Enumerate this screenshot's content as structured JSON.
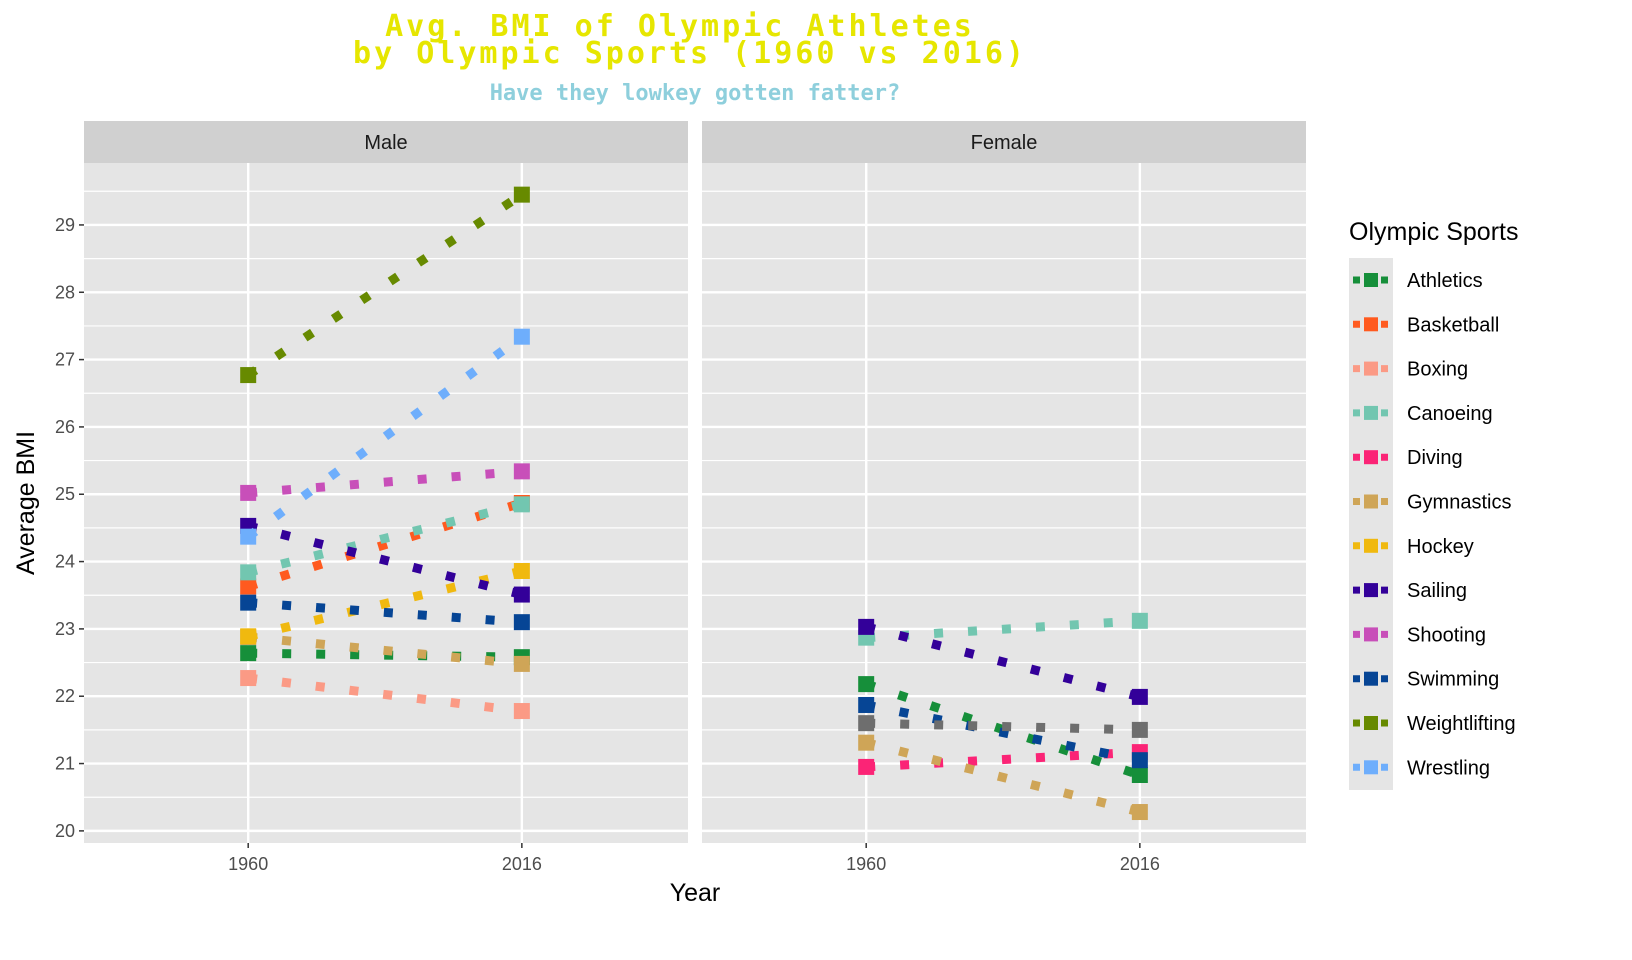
{
  "chart_data": {
    "type": "line",
    "title_line1": "Avg. BMI of Olympic Athletes",
    "title_line2": "by Olympic Sports (1960 vs 2016)",
    "subtitle": "Have they lowkey gotten fatter?",
    "xlabel": "Year",
    "ylabel": "Average BMI",
    "x_ticks": [
      "1960",
      "2016"
    ],
    "y_ticks": [
      20,
      21,
      22,
      23,
      24,
      25,
      26,
      27,
      28,
      29
    ],
    "ylim": [
      19.82,
      29.92
    ],
    "xlim": [
      1926.4,
      2050
    ],
    "legend_title": "Olympic Sports",
    "legend_position": "right",
    "panels": [
      {
        "label": "Male",
        "series": [
          {
            "name": "Athletics",
            "color": "#168f3a",
            "x": [
              1960,
              2016
            ],
            "y": [
              22.64,
              22.58
            ]
          },
          {
            "name": "Basketball",
            "color": "#ff5a1f",
            "x": [
              1960,
              2016
            ],
            "y": [
              23.63,
              24.87
            ]
          },
          {
            "name": "Boxing",
            "color": "#fb9a85",
            "x": [
              1960,
              2016
            ],
            "y": [
              22.27,
              21.78
            ]
          },
          {
            "name": "Canoeing",
            "color": "#72c6b0",
            "x": [
              1960,
              2016
            ],
            "y": [
              23.84,
              24.85
            ]
          },
          {
            "name": "Gymnastics",
            "color": "#cfa557",
            "x": [
              1960,
              2016
            ],
            "y": [
              22.88,
              22.48
            ]
          },
          {
            "name": "Hockey",
            "color": "#f0b90f",
            "x": [
              1960,
              2016
            ],
            "y": [
              22.89,
              23.86
            ]
          },
          {
            "name": "Sailing",
            "color": "#330099",
            "x": [
              1960,
              2016
            ],
            "y": [
              24.53,
              23.51
            ]
          },
          {
            "name": "Shooting",
            "color": "#c84fb9",
            "x": [
              1960,
              2016
            ],
            "y": [
              25.02,
              25.34
            ]
          },
          {
            "name": "Swimming",
            "color": "#064595",
            "x": [
              1960,
              2016
            ],
            "y": [
              23.39,
              23.1
            ]
          },
          {
            "name": "Weightlifting",
            "color": "#678a00",
            "x": [
              1960,
              2016
            ],
            "y": [
              26.77,
              29.45
            ]
          },
          {
            "name": "Wrestling",
            "color": "#6eaefc",
            "x": [
              1960,
              2016
            ],
            "y": [
              24.37,
              27.34
            ]
          }
        ]
      },
      {
        "label": "Female",
        "series": [
          {
            "name": "Athletics",
            "color": "#168f3a",
            "x": [
              1960,
              2016
            ],
            "y": [
              22.18,
              20.83
            ]
          },
          {
            "name": "Canoeing",
            "color": "#72c6b0",
            "x": [
              1960,
              2016
            ],
            "y": [
              22.87,
              23.12
            ]
          },
          {
            "name": "Diving",
            "color": "#fb2476",
            "x": [
              1960,
              2016
            ],
            "y": [
              20.95,
              21.17
            ]
          },
          {
            "name": "Gymnastics",
            "color": "#cfa557",
            "x": [
              1960,
              2016
            ],
            "y": [
              21.31,
              20.28
            ]
          },
          {
            "name": "Sailing",
            "color": "#330099",
            "x": [
              1960,
              2016
            ],
            "y": [
              23.03,
              21.99
            ]
          },
          {
            "name": "Swimming",
            "color": "#064595",
            "x": [
              1960,
              2016
            ],
            "y": [
              21.87,
              21.05
            ]
          },
          {
            "name": "",
            "color": "#6e6e6e",
            "x": [
              1960,
              2016
            ],
            "y": [
              21.6,
              21.5
            ]
          }
        ]
      }
    ],
    "legend": [
      {
        "name": "Athletics",
        "color": "#168f3a"
      },
      {
        "name": "Basketball",
        "color": "#ff5a1f"
      },
      {
        "name": "Boxing",
        "color": "#fb9a85"
      },
      {
        "name": "Canoeing",
        "color": "#72c6b0"
      },
      {
        "name": "Diving",
        "color": "#fb2476"
      },
      {
        "name": "Gymnastics",
        "color": "#cfa557"
      },
      {
        "name": "Hockey",
        "color": "#f0b90f"
      },
      {
        "name": "Sailing",
        "color": "#330099"
      },
      {
        "name": "Shooting",
        "color": "#c84fb9"
      },
      {
        "name": "Swimming",
        "color": "#064595"
      },
      {
        "name": "Weightlifting",
        "color": "#678a00"
      },
      {
        "name": "Wrestling",
        "color": "#6eaefc"
      }
    ],
    "colors": {
      "title": "#e6e600",
      "subtitle": "#8ecfdc",
      "panel_bg": "#e5e5e5",
      "strip_bg": "#d0d0d0"
    }
  }
}
